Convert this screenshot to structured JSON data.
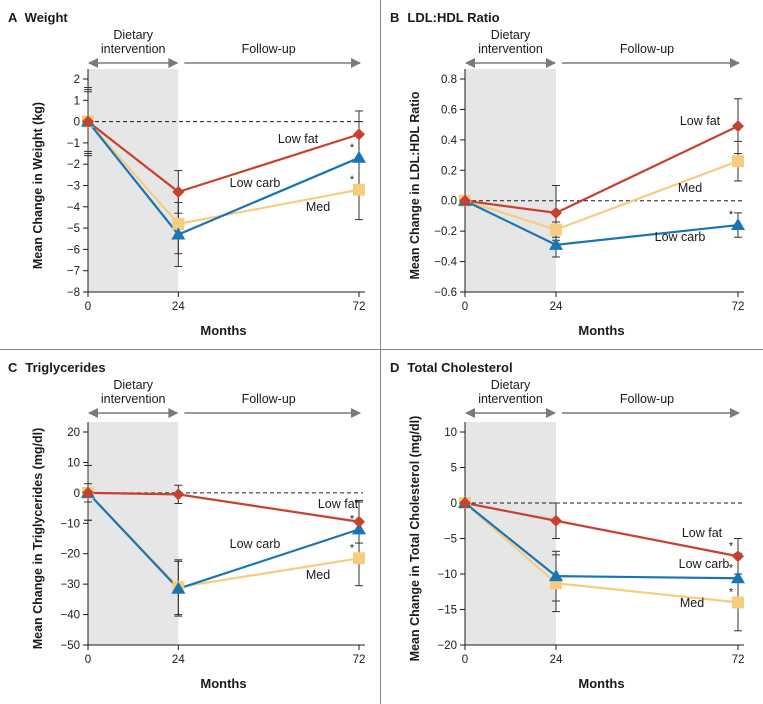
{
  "chart_data": [
    {
      "type": "line",
      "panel_letter": "A",
      "title": "Weight",
      "xlabel": "Months",
      "ylabel": "Mean Change in Weight (kg)",
      "x": [
        0,
        24,
        72
      ],
      "xticks": [
        "0",
        "24",
        "72"
      ],
      "ylim": [
        -8,
        2
      ],
      "yticks": [
        2,
        1,
        0,
        -1,
        -2,
        -3,
        -4,
        -5,
        -6,
        -7,
        -8
      ],
      "ytick_labels": [
        "2",
        "1",
        "0",
        "−1",
        "−2",
        "−3",
        "−4",
        "−5",
        "−6",
        "−7",
        "−8"
      ],
      "phases": {
        "diet": "Dietary intervention",
        "followup": "Follow-up"
      },
      "series": [
        {
          "name": "Low fat",
          "values": [
            0,
            -3.3,
            -0.6
          ],
          "err": [
            1.6,
            1.0,
            1.1
          ],
          "color": "#c8412e",
          "marker": "diamond",
          "star": false
        },
        {
          "name": "Low carb",
          "values": [
            0,
            -5.3,
            -1.7
          ],
          "err": [
            1.5,
            1.5,
            1.7
          ],
          "color": "#1a75b5",
          "marker": "triangle",
          "star": true
        },
        {
          "name": "Med",
          "values": [
            0,
            -4.8,
            -3.2
          ],
          "err": [
            1.4,
            1.4,
            1.4
          ],
          "color": "#f5cd7f",
          "marker": "square",
          "star": true
        }
      ]
    },
    {
      "type": "line",
      "panel_letter": "B",
      "title": "LDL:HDL Ratio",
      "xlabel": "Months",
      "ylabel": "Mean Change in LDL:HDL Ratio",
      "x": [
        0,
        24,
        72
      ],
      "xticks": [
        "0",
        "24",
        "72"
      ],
      "ylim": [
        -0.6,
        0.8
      ],
      "yticks": [
        0.8,
        0.6,
        0.4,
        0.2,
        0.0,
        -0.2,
        -0.4,
        -0.6
      ],
      "ytick_labels": [
        "0.8",
        "0.6",
        "0.4",
        "0.2",
        "0.0",
        "−0.2",
        "−0.4",
        "−0.6"
      ],
      "phases": {
        "diet": "Dietary intervention",
        "followup": "Follow-up"
      },
      "series": [
        {
          "name": "Low fat",
          "values": [
            0,
            -0.08,
            0.49
          ],
          "err": [
            0.0,
            0.18,
            0.18
          ],
          "color": "#c8412e",
          "marker": "diamond",
          "star": false
        },
        {
          "name": "Low carb",
          "values": [
            0,
            -0.29,
            -0.16
          ],
          "err": [
            0.0,
            0.08,
            0.08
          ],
          "color": "#1a75b5",
          "marker": "triangle",
          "star": true
        },
        {
          "name": "Med",
          "values": [
            0,
            -0.19,
            0.26
          ],
          "err": [
            0.0,
            0.05,
            0.13
          ],
          "color": "#f5cd7f",
          "marker": "square",
          "star": false
        }
      ]
    },
    {
      "type": "line",
      "panel_letter": "C",
      "title": "Triglycerides",
      "xlabel": "Months",
      "ylabel": "Mean Change in Triglycerides (mg/dl)",
      "x": [
        0,
        24,
        72
      ],
      "xticks": [
        "0",
        "24",
        "72"
      ],
      "ylim": [
        -50,
        20
      ],
      "yticks": [
        20,
        10,
        0,
        -10,
        -20,
        -30,
        -40,
        -50
      ],
      "ytick_labels": [
        "20",
        "10",
        "0",
        "−10",
        "−20",
        "−30",
        "−40",
        "−50"
      ],
      "phases": {
        "diet": "Dietary intervention",
        "followup": "Follow-up"
      },
      "series": [
        {
          "name": "Low fat",
          "values": [
            0,
            -0.5,
            -9.5
          ],
          "err": [
            3.0,
            3.0,
            7.0
          ],
          "color": "#c8412e",
          "marker": "diamond",
          "star": false
        },
        {
          "name": "Low carb",
          "values": [
            0,
            -31.5,
            -12
          ],
          "err": [
            9.0,
            9.0,
            9.0
          ],
          "color": "#1a75b5",
          "marker": "triangle",
          "star": true
        },
        {
          "name": "Med",
          "values": [
            0,
            -31,
            -21.5
          ],
          "err": [
            9.0,
            9.0,
            9.0
          ],
          "color": "#f5cd7f",
          "marker": "square",
          "star": true
        }
      ]
    },
    {
      "type": "line",
      "panel_letter": "D",
      "title": "Total Cholesterol",
      "xlabel": "Months",
      "ylabel": "Mean Change in Total Cholesterol (mg/dl)",
      "x": [
        0,
        24,
        72
      ],
      "xticks": [
        "0",
        "24",
        "72"
      ],
      "ylim": [
        -20,
        10
      ],
      "yticks": [
        10,
        5,
        0,
        -5,
        -10,
        -15,
        -20
      ],
      "ytick_labels": [
        "10",
        "5",
        "0",
        "−5",
        "−10",
        "−15",
        "−20"
      ],
      "phases": {
        "diet": "Dietary intervention",
        "followup": "Follow-up"
      },
      "series": [
        {
          "name": "Low fat",
          "values": [
            0,
            -2.5,
            -7.5
          ],
          "err": [
            0.0,
            2.5,
            2.5
          ],
          "color": "#c8412e",
          "marker": "diamond",
          "star": true
        },
        {
          "name": "Low carb",
          "values": [
            0,
            -10.3,
            -10.6
          ],
          "err": [
            0.0,
            3.5,
            3.5
          ],
          "color": "#1a75b5",
          "marker": "triangle",
          "star": true
        },
        {
          "name": "Med",
          "values": [
            0,
            -11.3,
            -14
          ],
          "err": [
            0.0,
            4.0,
            4.0
          ],
          "color": "#f5cd7f",
          "marker": "square",
          "star": true
        }
      ]
    }
  ]
}
